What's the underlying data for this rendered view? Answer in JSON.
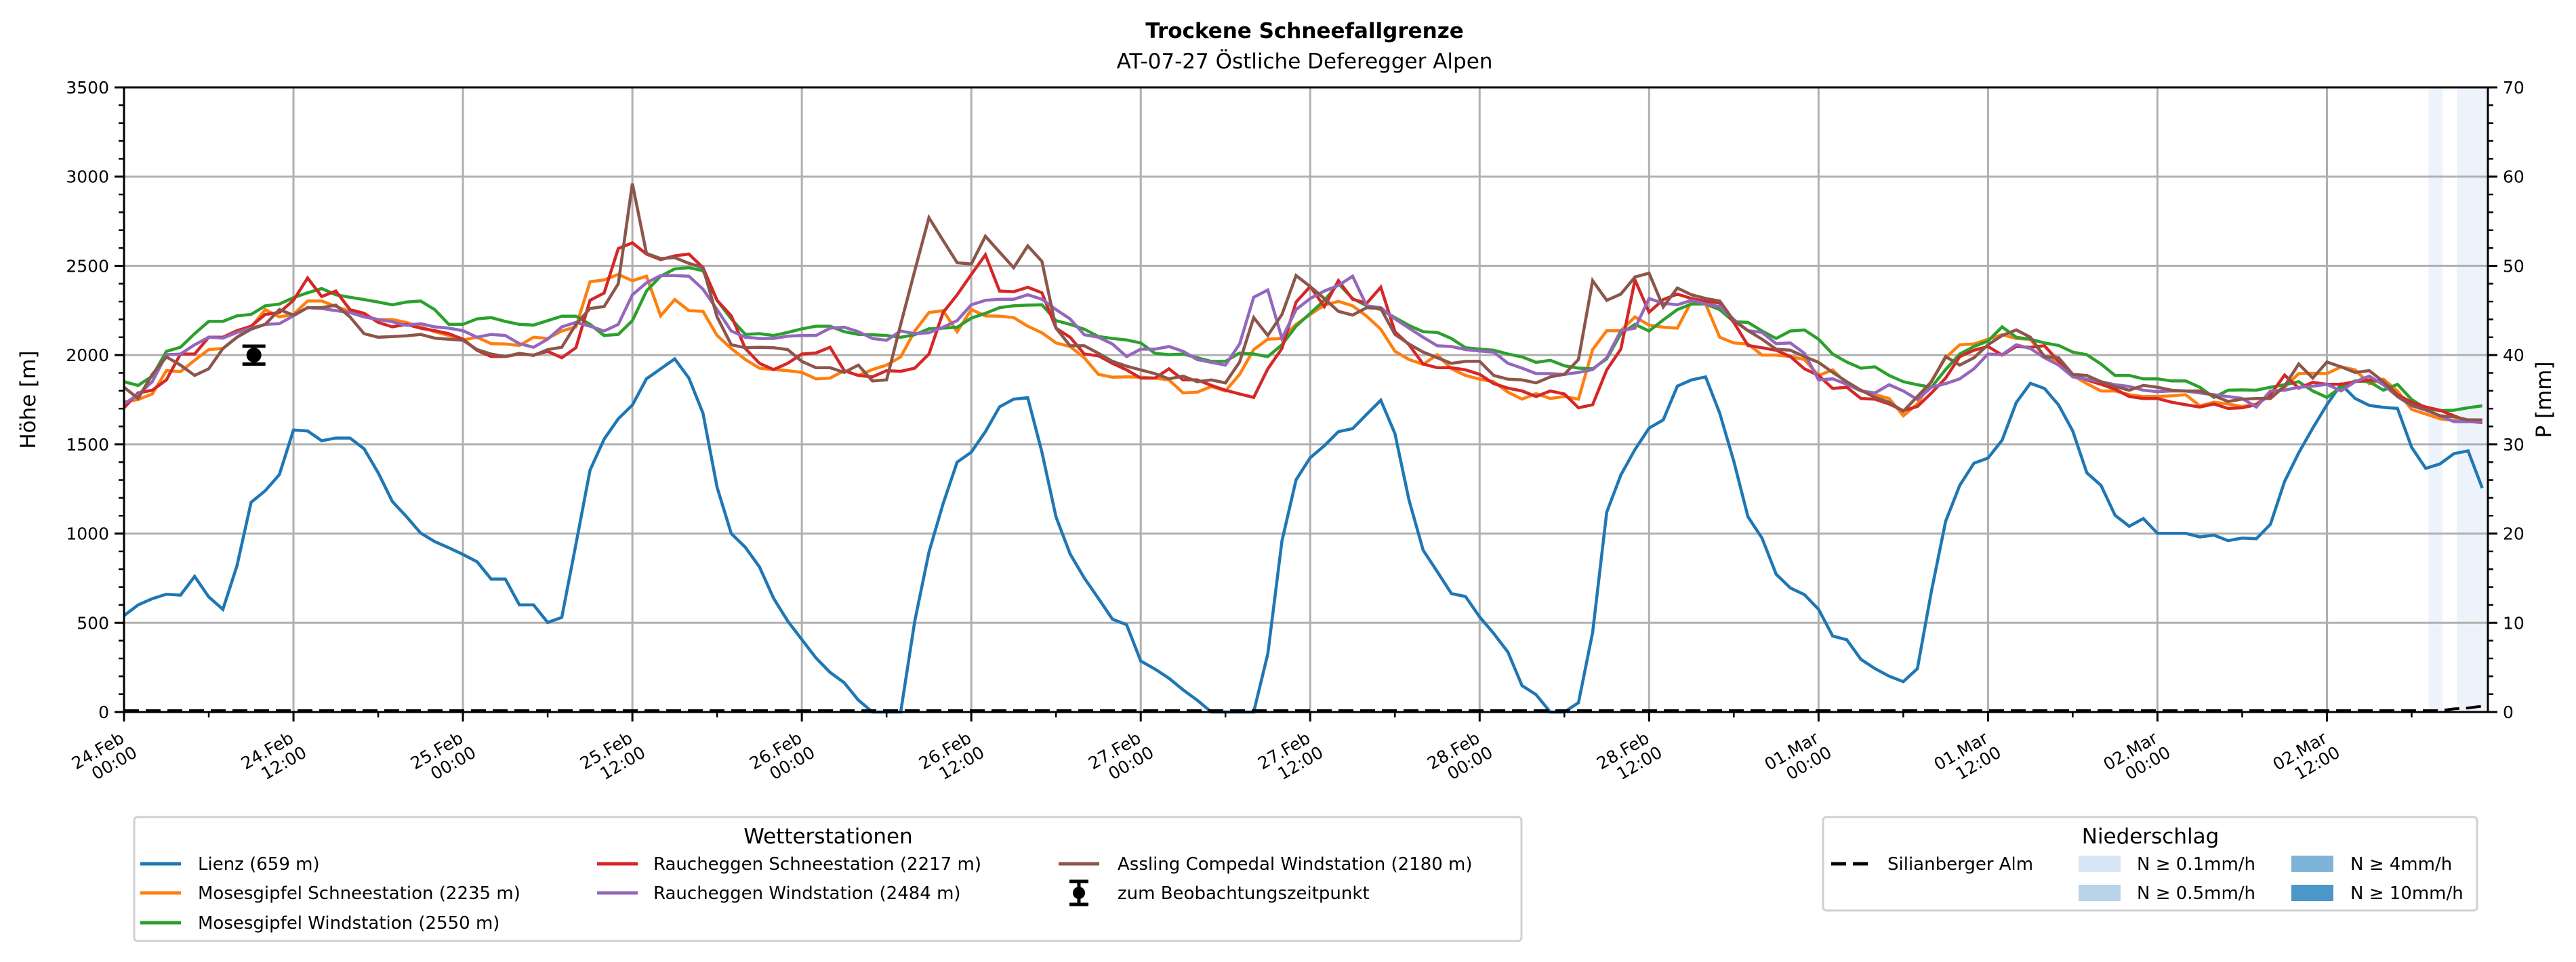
{
  "chart_data": {
    "type": "line",
    "title": "Trockene Schneefallgrenze",
    "subtitle": "AT-07-27 Östliche Deferegger Alpen",
    "ylabel": "Höhe [m]",
    "y2label": "P [mm]",
    "ylim": [
      0,
      3500
    ],
    "y2lim": [
      0,
      70
    ],
    "xlim_hours": [
      0,
      167.4
    ],
    "x_unit": "hours since 24.Feb 00:00",
    "grid": true,
    "yticks": [
      "0",
      "500",
      "1000",
      "1500",
      "2000",
      "2500",
      "3000",
      "3500"
    ],
    "y2ticks": [
      "0",
      "10",
      "20",
      "30",
      "40",
      "50",
      "60",
      "70"
    ],
    "xticks": [
      {
        "hour": 0,
        "line1": "24.Feb",
        "line2": "00:00"
      },
      {
        "hour": 12,
        "line1": "24.Feb",
        "line2": "12:00"
      },
      {
        "hour": 24,
        "line1": "25.Feb",
        "line2": "00:00"
      },
      {
        "hour": 36,
        "line1": "25.Feb",
        "line2": "12:00"
      },
      {
        "hour": 48,
        "line1": "26.Feb",
        "line2": "00:00"
      },
      {
        "hour": 60,
        "line1": "26.Feb",
        "line2": "12:00"
      },
      {
        "hour": 72,
        "line1": "27.Feb",
        "line2": "00:00"
      },
      {
        "hour": 84,
        "line1": "27.Feb",
        "line2": "12:00"
      },
      {
        "hour": 96,
        "line1": "28.Feb",
        "line2": "00:00"
      },
      {
        "hour": 108,
        "line1": "28.Feb",
        "line2": "12:00"
      },
      {
        "hour": 120,
        "line1": "01.Mar",
        "line2": "00:00"
      },
      {
        "hour": 132,
        "line1": "01.Mar",
        "line2": "12:00"
      },
      {
        "hour": 144,
        "line1": "02.Mar",
        "line2": "00:00"
      },
      {
        "hour": 156,
        "line1": "02.Mar",
        "line2": "12:00"
      }
    ],
    "series": [
      {
        "name": "Lienz (659 m)",
        "color": "#1f77b4",
        "values": [
          540,
          600,
          635,
          660,
          655,
          760,
          645,
          575,
          820,
          1175,
          1240,
          1330,
          1580,
          1575,
          1520,
          1535,
          1535,
          1475,
          1340,
          1180,
          1095,
          1003,
          955,
          920,
          883,
          842,
          745,
          745,
          600,
          600,
          502,
          530,
          940,
          1355,
          1529,
          1643,
          1720,
          1867,
          1923,
          1979,
          1871,
          1674,
          1259,
          1000,
          923,
          813,
          637,
          510,
          406,
          303,
          222,
          164,
          67,
          0,
          0,
          0,
          510,
          896,
          1166,
          1400,
          1456,
          1571,
          1710,
          1753,
          1761,
          1456,
          1093,
          886,
          751,
          637,
          520,
          489,
          286,
          241,
          189,
          124,
          66,
          0,
          0,
          0,
          0,
          326,
          959,
          1301,
          1425,
          1492,
          1571,
          1588,
          1668,
          1747,
          1560,
          1187,
          907,
          786,
          664,
          647,
          533,
          440,
          336,
          148,
          97,
          0,
          0,
          52,
          446,
          1120,
          1328,
          1471,
          1591,
          1637,
          1826,
          1861,
          1878,
          1675,
          1405,
          1094,
          974,
          772,
          695,
          658,
          575,
          426,
          405,
          295,
          243,
          201,
          170,
          243,
          679,
          1069,
          1270,
          1394,
          1423,
          1523,
          1734,
          1842,
          1813,
          1720,
          1575,
          1340,
          1270,
          1102,
          1041,
          1084,
          1001,
          1001,
          1001,
          981,
          991,
          960,
          975,
          971,
          1052,
          1292,
          1452,
          1591,
          1722,
          1836,
          1757,
          1718,
          1707,
          1701,
          1483,
          1365,
          1390,
          1448,
          1463,
          1255
        ]
      },
      {
        "name": "Mosesgipfel Schneestation (2235 m)",
        "color": "#ff7f0e",
        "values": [
          1737,
          1751,
          1782,
          1913,
          1907,
          1971,
          2031,
          2037,
          2100,
          2156,
          2255,
          2214,
          2228,
          2303,
          2303,
          2272,
          2245,
          2220,
          2199,
          2199,
          2183,
          2158,
          2131,
          2110,
          2085,
          2100,
          2064,
          2062,
          2054,
          2100,
          2093,
          2135,
          2158,
          2411,
          2421,
          2452,
          2417,
          2442,
          2220,
          2311,
          2249,
          2245,
          2110,
          2037,
          1975,
          1927,
          1919,
          1913,
          1903,
          1867,
          1871,
          1913,
          1886,
          1919,
          1944,
          1990,
          2135,
          2238,
          2249,
          2131,
          2255,
          2220,
          2218,
          2210,
          2162,
          2125,
          2068,
          2048,
          1985,
          1892,
          1876,
          1878,
          1876,
          1871,
          1861,
          1788,
          1792,
          1824,
          1799,
          1892,
          2031,
          2089,
          2093,
          2172,
          2228,
          2280,
          2301,
          2276,
          2218,
          2145,
          2021,
          1975,
          1948,
          2002,
          1923,
          1886,
          1865,
          1851,
          1792,
          1753,
          1784,
          1757,
          1768,
          1753,
          2031,
          2137,
          2137,
          2214,
          2168,
          2156,
          2151,
          2301,
          2286,
          2100,
          2068,
          2062,
          2000,
          2000,
          1992,
          1975,
          1886,
          1917,
          1840,
          1803,
          1778,
          1757,
          1660,
          1726,
          1855,
          1985,
          2058,
          2062,
          2089,
          2114,
          2093,
          2089,
          1992,
          1959,
          1886,
          1840,
          1799,
          1799,
          1778,
          1768,
          1768,
          1772,
          1778,
          1716,
          1736,
          1726,
          1712,
          1726,
          1778,
          1820,
          1896,
          1898,
          1896,
          1934,
          1917,
          1840,
          1865,
          1799,
          1695,
          1670,
          1643,
          1633,
          1629,
          1629
        ]
      },
      {
        "name": "Mosesgipfel Windstation (2550 m)",
        "color": "#2ca02c",
        "values": [
          1851,
          1830,
          1882,
          2021,
          2044,
          2120,
          2189,
          2189,
          2220,
          2228,
          2276,
          2286,
          2322,
          2349,
          2373,
          2338,
          2324,
          2311,
          2297,
          2282,
          2297,
          2303,
          2255,
          2172,
          2172,
          2203,
          2210,
          2189,
          2172,
          2168,
          2193,
          2218,
          2218,
          2172,
          2110,
          2116,
          2193,
          2359,
          2442,
          2483,
          2490,
          2473,
          2307,
          2203,
          2116,
          2120,
          2110,
          2127,
          2147,
          2162,
          2162,
          2131,
          2116,
          2114,
          2110,
          2100,
          2114,
          2147,
          2151,
          2156,
          2207,
          2234,
          2266,
          2276,
          2280,
          2282,
          2193,
          2172,
          2145,
          2104,
          2093,
          2085,
          2068,
          2010,
          2002,
          2006,
          1985,
          1965,
          1965,
          2012,
          2006,
          1992,
          2058,
          2162,
          2234,
          2307,
          2400,
          2317,
          2276,
          2255,
          2210,
          2166,
          2131,
          2127,
          2093,
          2041,
          2033,
          2027,
          2006,
          1990,
          1959,
          1971,
          1940,
          1927,
          1923,
          1979,
          2120,
          2172,
          2135,
          2197,
          2255,
          2286,
          2286,
          2255,
          2187,
          2183,
          2135,
          2093,
          2135,
          2141,
          2089,
          2006,
          1961,
          1927,
          1934,
          1886,
          1851,
          1834,
          1820,
          1919,
          2006,
          2048,
          2079,
          2158,
          2100,
          2089,
          2068,
          2054,
          2017,
          2002,
          1950,
          1886,
          1886,
          1867,
          1867,
          1855,
          1855,
          1820,
          1763,
          1803,
          1805,
          1803,
          1820,
          1834,
          1851,
          1799,
          1763,
          1820,
          1855,
          1851,
          1803,
          1836,
          1751,
          1701,
          1689,
          1691,
          1705,
          1716
        ]
      },
      {
        "name": "Raucheggen Schneestation (2217 m)",
        "color": "#d62728",
        "values": [
          1705,
          1788,
          1803,
          1861,
          2006,
          2006,
          2100,
          2100,
          2137,
          2162,
          2228,
          2238,
          2307,
          2432,
          2328,
          2359,
          2255,
          2234,
          2183,
          2158,
          2172,
          2151,
          2137,
          2120,
          2089,
          2027,
          1992,
          1992,
          2006,
          2000,
          2021,
          1985,
          2041,
          2307,
          2348,
          2597,
          2629,
          2566,
          2535,
          2556,
          2566,
          2490,
          2307,
          2220,
          2037,
          1954,
          1919,
          1954,
          2006,
          2012,
          2044,
          1913,
          1886,
          1878,
          1913,
          1909,
          1927,
          2006,
          2238,
          2338,
          2452,
          2562,
          2359,
          2355,
          2380,
          2349,
          2151,
          2100,
          2006,
          1996,
          1954,
          1917,
          1871,
          1871,
          1923,
          1861,
          1861,
          1830,
          1803,
          1782,
          1763,
          1923,
          2037,
          2297,
          2384,
          2272,
          2417,
          2313,
          2290,
          2380,
          2131,
          2058,
          1950,
          1929,
          1929,
          1917,
          1892,
          1840,
          1815,
          1799,
          1768,
          1799,
          1782,
          1705,
          1722,
          1917,
          2033,
          2421,
          2240,
          2311,
          2342,
          2317,
          2301,
          2292,
          2183,
          2054,
          2041,
          2027,
          1992,
          1923,
          1886,
          1813,
          1820,
          1757,
          1753,
          1726,
          1689,
          1712,
          1788,
          1871,
          1992,
          2027,
          2048,
          2000,
          2048,
          2044,
          2052,
          1965,
          1892,
          1861,
          1836,
          1809,
          1768,
          1757,
          1757,
          1736,
          1722,
          1709,
          1726,
          1701,
          1705,
          1722,
          1778,
          1888,
          1815,
          1847,
          1836,
          1836,
          1851,
          1861,
          1851,
          1778,
          1736,
          1709,
          1691,
          1660,
          1629,
          1622
        ]
      },
      {
        "name": "Raucheggen Windstation (2484 m)",
        "color": "#9467bd",
        "values": [
          1726,
          1778,
          1851,
          2002,
          2006,
          2058,
          2100,
          2095,
          2127,
          2151,
          2172,
          2176,
          2220,
          2266,
          2261,
          2249,
          2238,
          2214,
          2199,
          2187,
          2166,
          2176,
          2158,
          2151,
          2137,
          2100,
          2116,
          2110,
          2064,
          2044,
          2089,
          2158,
          2183,
          2162,
          2135,
          2172,
          2338,
          2405,
          2446,
          2446,
          2442,
          2369,
          2255,
          2135,
          2100,
          2093,
          2093,
          2106,
          2110,
          2110,
          2151,
          2156,
          2131,
          2093,
          2083,
          2135,
          2120,
          2125,
          2156,
          2193,
          2282,
          2307,
          2313,
          2313,
          2338,
          2313,
          2255,
          2203,
          2114,
          2100,
          2062,
          1992,
          2033,
          2033,
          2048,
          2021,
          1975,
          1959,
          1944,
          2062,
          2324,
          2365,
          2093,
          2255,
          2317,
          2359,
          2390,
          2442,
          2276,
          2266,
          2203,
          2151,
          2100,
          2052,
          2048,
          2031,
          2023,
          2017,
          1954,
          1927,
          1896,
          1896,
          1892,
          1903,
          1919,
          1985,
          2137,
          2151,
          2317,
          2290,
          2282,
          2307,
          2286,
          2272,
          2199,
          2137,
          2127,
          2064,
          2068,
          2010,
          1861,
          1867,
          1836,
          1799,
          1788,
          1834,
          1799,
          1751,
          1820,
          1840,
          1867,
          1923,
          2006,
          2002,
          2058,
          2037,
          1985,
          1944,
          1878,
          1865,
          1851,
          1834,
          1824,
          1803,
          1795,
          1799,
          1799,
          1788,
          1778,
          1768,
          1757,
          1709,
          1799,
          1803,
          1820,
          1826,
          1836,
          1799,
          1851,
          1882,
          1834,
          1768,
          1716,
          1691,
          1660,
          1627,
          1627,
          1627
        ]
      },
      {
        "name": "Assling Compedal Windstation (2180 m)",
        "color": "#8c564b",
        "values": [
          1820,
          1757,
          1892,
          1990,
          1944,
          1886,
          1923,
          2037,
          2100,
          2145,
          2172,
          2255,
          2224,
          2266,
          2266,
          2280,
          2214,
          2120,
          2100,
          2104,
          2108,
          2116,
          2095,
          2089,
          2083,
          2031,
          2006,
          1992,
          2010,
          1998,
          2031,
          2044,
          2172,
          2261,
          2272,
          2400,
          2961,
          2570,
          2541,
          2546,
          2514,
          2490,
          2214,
          2058,
          2041,
          2044,
          2041,
          2031,
          1965,
          1929,
          1929,
          1903,
          1944,
          1855,
          1861,
          2172,
          2473,
          2770,
          2643,
          2518,
          2510,
          2666,
          2577,
          2490,
          2612,
          2525,
          2151,
          2052,
          2052,
          2010,
          1965,
          1938,
          1917,
          1896,
          1867,
          1882,
          1851,
          1861,
          1844,
          1961,
          2210,
          2110,
          2228,
          2446,
          2384,
          2317,
          2245,
          2224,
          2266,
          2261,
          2116,
          2062,
          2017,
          1985,
          1954,
          1965,
          1965,
          1886,
          1865,
          1861,
          1844,
          1878,
          1892,
          1975,
          2417,
          2307,
          2342,
          2438,
          2459,
          2270,
          2376,
          2338,
          2317,
          2303,
          2193,
          2137,
          2089,
          2033,
          2027,
          1992,
          1959,
          1903,
          1851,
          1803,
          1763,
          1736,
          1685,
          1768,
          1851,
          1992,
          1944,
          1985,
          2058,
          2110,
          2141,
          2100,
          1992,
          1985,
          1892,
          1886,
          1851,
          1824,
          1803,
          1830,
          1820,
          1803,
          1799,
          1799,
          1772,
          1740,
          1753,
          1757,
          1757,
          1826,
          1950,
          1871,
          1961,
          1934,
          1903,
          1913,
          1851,
          1768,
          1720,
          1695,
          1660,
          1654,
          1637,
          1637
        ]
      }
    ],
    "observation": {
      "label": "zum Beobachtungszeitpunkt",
      "hour": 9.2,
      "value": 2000,
      "error": 50
    },
    "precip_station": {
      "name": "Silianberger Alm",
      "axis": "right",
      "values_mm_last_hours": [
        0.2,
        0.3,
        0.5
      ],
      "baseline_mm": 0
    },
    "precip_bands": [
      {
        "start_hour": 163.2,
        "end_hour": 164.2
      },
      {
        "start_hour": 165.2,
        "end_hour": 167.4
      }
    ],
    "band_color": "#eef3fb",
    "legends": {
      "stations": {
        "title": "Wetterstationen",
        "placement": "below-left"
      },
      "precip": {
        "title": "Niederschlag",
        "placement": "below-right",
        "classes": [
          {
            "label": "N ≥ 0.1mm/h",
            "color": "#d6e6f4"
          },
          {
            "label": "N ≥ 0.5mm/h",
            "color": "#b9d4ea"
          },
          {
            "label": "N ≥ 4mm/h",
            "color": "#7fb4d9"
          },
          {
            "label": "N ≥ 10mm/h",
            "color": "#4b97c9"
          }
        ]
      }
    }
  }
}
